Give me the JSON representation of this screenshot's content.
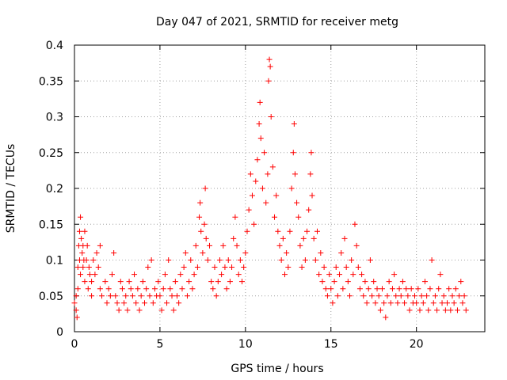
{
  "chart_data": {
    "type": "scatter",
    "title": "Day 047 of 2021, SRMTID for receiver metg",
    "xlabel": "GPS time / hours",
    "ylabel": "SRMTID / TECUs",
    "xlim": [
      0,
      24
    ],
    "ylim": [
      0,
      0.4
    ],
    "xticks": [
      0,
      5,
      10,
      15,
      20
    ],
    "xtick_labels": [
      "0",
      "5",
      "10",
      "15",
      "20"
    ],
    "yticks": [
      0,
      0.05,
      0.1,
      0.15,
      0.2,
      0.25,
      0.3,
      0.35,
      0.4
    ],
    "ytick_labels": [
      "0",
      "0.05",
      "0.1",
      "0.15",
      "0.2",
      "0.25",
      "0.3",
      "0.35",
      "0.4"
    ],
    "grid": true,
    "marker": "+",
    "color": "#ff0000",
    "series": [
      {
        "name": "SRMTID",
        "points": [
          [
            0.0,
            0.04
          ],
          [
            0.1,
            0.03
          ],
          [
            0.1,
            0.05
          ],
          [
            0.15,
            0.02
          ],
          [
            0.2,
            0.06
          ],
          [
            0.2,
            0.09
          ],
          [
            0.25,
            0.12
          ],
          [
            0.3,
            0.1
          ],
          [
            0.3,
            0.14
          ],
          [
            0.35,
            0.16
          ],
          [
            0.35,
            0.08
          ],
          [
            0.4,
            0.13
          ],
          [
            0.45,
            0.11
          ],
          [
            0.5,
            0.09
          ],
          [
            0.5,
            0.12
          ],
          [
            0.55,
            0.1
          ],
          [
            0.6,
            0.14
          ],
          [
            0.6,
            0.07
          ],
          [
            0.7,
            0.1
          ],
          [
            0.75,
            0.12
          ],
          [
            0.8,
            0.06
          ],
          [
            0.85,
            0.09
          ],
          [
            0.9,
            0.08
          ],
          [
            1.0,
            0.07
          ],
          [
            1.0,
            0.05
          ],
          [
            1.1,
            0.1
          ],
          [
            1.2,
            0.08
          ],
          [
            1.3,
            0.11
          ],
          [
            1.4,
            0.09
          ],
          [
            1.5,
            0.06
          ],
          [
            1.5,
            0.12
          ],
          [
            1.6,
            0.05
          ],
          [
            1.8,
            0.07
          ],
          [
            1.9,
            0.04
          ],
          [
            2.0,
            0.06
          ],
          [
            2.1,
            0.05
          ],
          [
            2.2,
            0.08
          ],
          [
            2.3,
            0.11
          ],
          [
            2.4,
            0.05
          ],
          [
            2.5,
            0.04
          ],
          [
            2.6,
            0.03
          ],
          [
            2.7,
            0.07
          ],
          [
            2.8,
            0.06
          ],
          [
            2.9,
            0.04
          ],
          [
            3.0,
            0.05
          ],
          [
            3.1,
            0.03
          ],
          [
            3.2,
            0.07
          ],
          [
            3.3,
            0.06
          ],
          [
            3.4,
            0.05
          ],
          [
            3.5,
            0.08
          ],
          [
            3.6,
            0.04
          ],
          [
            3.7,
            0.06
          ],
          [
            3.8,
            0.03
          ],
          [
            3.9,
            0.05
          ],
          [
            4.0,
            0.07
          ],
          [
            4.1,
            0.04
          ],
          [
            4.2,
            0.06
          ],
          [
            4.3,
            0.09
          ],
          [
            4.4,
            0.05
          ],
          [
            4.5,
            0.1
          ],
          [
            4.6,
            0.04
          ],
          [
            4.7,
            0.06
          ],
          [
            4.8,
            0.05
          ],
          [
            4.9,
            0.07
          ],
          [
            5.0,
            0.05
          ],
          [
            5.1,
            0.03
          ],
          [
            5.2,
            0.06
          ],
          [
            5.3,
            0.08
          ],
          [
            5.4,
            0.04
          ],
          [
            5.5,
            0.1
          ],
          [
            5.6,
            0.06
          ],
          [
            5.7,
            0.05
          ],
          [
            5.8,
            0.03
          ],
          [
            5.9,
            0.07
          ],
          [
            6.0,
            0.05
          ],
          [
            6.1,
            0.04
          ],
          [
            6.2,
            0.08
          ],
          [
            6.3,
            0.06
          ],
          [
            6.4,
            0.09
          ],
          [
            6.5,
            0.11
          ],
          [
            6.6,
            0.05
          ],
          [
            6.7,
            0.07
          ],
          [
            6.8,
            0.1
          ],
          [
            6.9,
            0.06
          ],
          [
            7.0,
            0.08
          ],
          [
            7.1,
            0.12
          ],
          [
            7.2,
            0.09
          ],
          [
            7.3,
            0.16
          ],
          [
            7.35,
            0.18
          ],
          [
            7.4,
            0.14
          ],
          [
            7.5,
            0.11
          ],
          [
            7.6,
            0.15
          ],
          [
            7.65,
            0.2
          ],
          [
            7.7,
            0.13
          ],
          [
            7.8,
            0.1
          ],
          [
            7.9,
            0.12
          ],
          [
            8.0,
            0.07
          ],
          [
            8.1,
            0.06
          ],
          [
            8.2,
            0.09
          ],
          [
            8.3,
            0.05
          ],
          [
            8.4,
            0.07
          ],
          [
            8.5,
            0.1
          ],
          [
            8.6,
            0.08
          ],
          [
            8.7,
            0.12
          ],
          [
            8.8,
            0.09
          ],
          [
            8.9,
            0.06
          ],
          [
            9.0,
            0.1
          ],
          [
            9.1,
            0.07
          ],
          [
            9.2,
            0.09
          ],
          [
            9.3,
            0.13
          ],
          [
            9.4,
            0.16
          ],
          [
            9.5,
            0.12
          ],
          [
            9.6,
            0.08
          ],
          [
            9.7,
            0.1
          ],
          [
            9.8,
            0.07
          ],
          [
            9.9,
            0.09
          ],
          [
            10.0,
            0.11
          ],
          [
            10.1,
            0.14
          ],
          [
            10.2,
            0.17
          ],
          [
            10.3,
            0.22
          ],
          [
            10.4,
            0.19
          ],
          [
            10.5,
            0.15
          ],
          [
            10.6,
            0.21
          ],
          [
            10.7,
            0.24
          ],
          [
            10.8,
            0.29
          ],
          [
            10.85,
            0.32
          ],
          [
            10.9,
            0.27
          ],
          [
            11.0,
            0.2
          ],
          [
            11.1,
            0.25
          ],
          [
            11.2,
            0.18
          ],
          [
            11.3,
            0.22
          ],
          [
            11.35,
            0.35
          ],
          [
            11.4,
            0.38
          ],
          [
            11.45,
            0.37
          ],
          [
            11.5,
            0.3
          ],
          [
            11.6,
            0.23
          ],
          [
            11.7,
            0.16
          ],
          [
            11.8,
            0.19
          ],
          [
            11.9,
            0.14
          ],
          [
            12.0,
            0.12
          ],
          [
            12.1,
            0.1
          ],
          [
            12.2,
            0.13
          ],
          [
            12.3,
            0.08
          ],
          [
            12.4,
            0.11
          ],
          [
            12.5,
            0.09
          ],
          [
            12.6,
            0.14
          ],
          [
            12.7,
            0.2
          ],
          [
            12.8,
            0.25
          ],
          [
            12.85,
            0.29
          ],
          [
            12.9,
            0.22
          ],
          [
            13.0,
            0.18
          ],
          [
            13.1,
            0.16
          ],
          [
            13.2,
            0.12
          ],
          [
            13.3,
            0.09
          ],
          [
            13.4,
            0.13
          ],
          [
            13.5,
            0.1
          ],
          [
            13.6,
            0.14
          ],
          [
            13.7,
            0.17
          ],
          [
            13.8,
            0.22
          ],
          [
            13.85,
            0.25
          ],
          [
            13.9,
            0.19
          ],
          [
            14.0,
            0.13
          ],
          [
            14.1,
            0.1
          ],
          [
            14.2,
            0.14
          ],
          [
            14.3,
            0.08
          ],
          [
            14.4,
            0.11
          ],
          [
            14.5,
            0.07
          ],
          [
            14.6,
            0.09
          ],
          [
            14.7,
            0.06
          ],
          [
            14.8,
            0.05
          ],
          [
            14.9,
            0.08
          ],
          [
            15.0,
            0.06
          ],
          [
            15.1,
            0.04
          ],
          [
            15.2,
            0.07
          ],
          [
            15.3,
            0.09
          ],
          [
            15.4,
            0.05
          ],
          [
            15.5,
            0.08
          ],
          [
            15.6,
            0.11
          ],
          [
            15.7,
            0.06
          ],
          [
            15.8,
            0.13
          ],
          [
            15.9,
            0.09
          ],
          [
            16.0,
            0.07
          ],
          [
            16.1,
            0.05
          ],
          [
            16.2,
            0.1
          ],
          [
            16.3,
            0.08
          ],
          [
            16.4,
            0.15
          ],
          [
            16.5,
            0.12
          ],
          [
            16.6,
            0.09
          ],
          [
            16.7,
            0.06
          ],
          [
            16.8,
            0.08
          ],
          [
            16.9,
            0.05
          ],
          [
            17.0,
            0.07
          ],
          [
            17.1,
            0.04
          ],
          [
            17.2,
            0.06
          ],
          [
            17.3,
            0.1
          ],
          [
            17.4,
            0.05
          ],
          [
            17.5,
            0.07
          ],
          [
            17.6,
            0.04
          ],
          [
            17.7,
            0.06
          ],
          [
            17.8,
            0.05
          ],
          [
            17.9,
            0.03
          ],
          [
            18.0,
            0.06
          ],
          [
            18.1,
            0.04
          ],
          [
            18.2,
            0.02
          ],
          [
            18.3,
            0.05
          ],
          [
            18.4,
            0.07
          ],
          [
            18.5,
            0.04
          ],
          [
            18.6,
            0.06
          ],
          [
            18.7,
            0.08
          ],
          [
            18.8,
            0.05
          ],
          [
            18.9,
            0.04
          ],
          [
            19.0,
            0.06
          ],
          [
            19.1,
            0.05
          ],
          [
            19.2,
            0.07
          ],
          [
            19.3,
            0.04
          ],
          [
            19.4,
            0.06
          ],
          [
            19.5,
            0.05
          ],
          [
            19.6,
            0.03
          ],
          [
            19.7,
            0.06
          ],
          [
            19.8,
            0.04
          ],
          [
            19.9,
            0.05
          ],
          [
            20.0,
            0.04
          ],
          [
            20.1,
            0.06
          ],
          [
            20.2,
            0.03
          ],
          [
            20.3,
            0.05
          ],
          [
            20.4,
            0.04
          ],
          [
            20.5,
            0.07
          ],
          [
            20.6,
            0.05
          ],
          [
            20.7,
            0.03
          ],
          [
            20.8,
            0.06
          ],
          [
            20.9,
            0.1
          ],
          [
            21.0,
            0.04
          ],
          [
            21.1,
            0.05
          ],
          [
            21.2,
            0.03
          ],
          [
            21.3,
            0.06
          ],
          [
            21.4,
            0.08
          ],
          [
            21.5,
            0.04
          ],
          [
            21.6,
            0.05
          ],
          [
            21.7,
            0.03
          ],
          [
            21.8,
            0.04
          ],
          [
            21.9,
            0.06
          ],
          [
            22.0,
            0.03
          ],
          [
            22.1,
            0.05
          ],
          [
            22.2,
            0.04
          ],
          [
            22.3,
            0.06
          ],
          [
            22.4,
            0.03
          ],
          [
            22.5,
            0.05
          ],
          [
            22.6,
            0.07
          ],
          [
            22.7,
            0.04
          ],
          [
            22.8,
            0.05
          ],
          [
            22.9,
            0.03
          ]
        ]
      }
    ]
  }
}
